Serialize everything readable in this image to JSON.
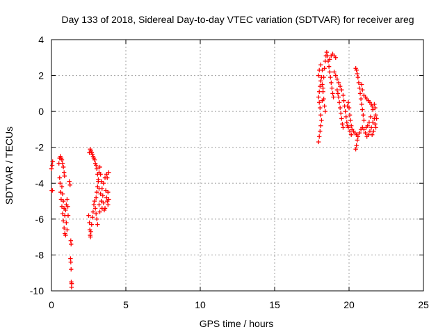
{
  "chart_data": {
    "type": "scatter",
    "title": "Day 133 of 2018, Sidereal Day-to-day VTEC variation (SDTVAR) for receiver areg",
    "xlabel": "GPS time / hours",
    "ylabel": "SDTVAR / TECUs",
    "xlim": [
      0,
      25
    ],
    "ylim": [
      -10,
      4
    ],
    "xticks": [
      "0",
      "5",
      "10",
      "15",
      "20",
      "25"
    ],
    "yticks": [
      "-10",
      "-8",
      "-6",
      "-4",
      "-2",
      "0",
      "2",
      "4"
    ],
    "grid": true,
    "marker": "plus",
    "color": "#ff0000",
    "series": [
      {
        "values": [
          [
            0.0,
            -3.2
          ],
          [
            0.05,
            -3.0
          ],
          [
            0.08,
            -2.8
          ],
          [
            0.02,
            -4.4
          ],
          [
            0.07,
            -4.4
          ],
          [
            0.5,
            -2.9
          ],
          [
            0.55,
            -2.6
          ],
          [
            0.6,
            -2.5
          ],
          [
            0.65,
            -2.6
          ],
          [
            0.7,
            -2.7
          ],
          [
            0.75,
            -2.9
          ],
          [
            0.8,
            -3.1
          ],
          [
            0.85,
            -3.4
          ],
          [
            0.88,
            -3.6
          ],
          [
            0.55,
            -3.7
          ],
          [
            0.58,
            -4.0
          ],
          [
            0.62,
            -4.5
          ],
          [
            0.65,
            -4.9
          ],
          [
            0.7,
            -5.3
          ],
          [
            0.75,
            -5.7
          ],
          [
            0.8,
            -6.1
          ],
          [
            0.85,
            -6.5
          ],
          [
            0.9,
            -6.8
          ],
          [
            0.95,
            -6.9
          ],
          [
            0.7,
            -4.2
          ],
          [
            0.75,
            -4.6
          ],
          [
            0.8,
            -5.0
          ],
          [
            0.85,
            -5.4
          ],
          [
            0.9,
            -5.8
          ],
          [
            0.95,
            -5.5
          ],
          [
            1.0,
            -5.2
          ],
          [
            1.05,
            -4.9
          ],
          [
            1.1,
            -5.3
          ],
          [
            1.12,
            -5.8
          ],
          [
            1.0,
            -6.2
          ],
          [
            1.05,
            -6.6
          ],
          [
            1.2,
            -3.9
          ],
          [
            1.25,
            -4.1
          ],
          [
            1.3,
            -7.2
          ],
          [
            1.32,
            -7.4
          ],
          [
            1.28,
            -8.2
          ],
          [
            1.3,
            -8.4
          ],
          [
            1.32,
            -8.8
          ],
          [
            1.33,
            -9.5
          ],
          [
            1.35,
            -9.8
          ],
          [
            1.36,
            -9.6
          ],
          [
            2.5,
            -5.8
          ],
          [
            2.55,
            -6.2
          ],
          [
            2.58,
            -6.6
          ],
          [
            2.6,
            -6.9
          ],
          [
            2.62,
            -7.0
          ],
          [
            2.65,
            -6.7
          ],
          [
            2.7,
            -6.3
          ],
          [
            2.75,
            -5.9
          ],
          [
            2.8,
            -5.6
          ],
          [
            2.55,
            -2.3
          ],
          [
            2.6,
            -2.1
          ],
          [
            2.65,
            -2.2
          ],
          [
            2.7,
            -2.3
          ],
          [
            2.75,
            -2.4
          ],
          [
            2.8,
            -2.5
          ],
          [
            2.85,
            -2.6
          ],
          [
            2.9,
            -2.7
          ],
          [
            2.95,
            -2.9
          ],
          [
            3.0,
            -3.0
          ],
          [
            3.05,
            -3.2
          ],
          [
            3.1,
            -3.5
          ],
          [
            3.15,
            -3.9
          ],
          [
            3.2,
            -4.3
          ],
          [
            2.85,
            -5.2
          ],
          [
            2.9,
            -5.0
          ],
          [
            2.95,
            -5.4
          ],
          [
            3.0,
            -5.7
          ],
          [
            3.05,
            -6.0
          ],
          [
            3.1,
            -6.3
          ],
          [
            3.0,
            -4.8
          ],
          [
            3.05,
            -4.5
          ],
          [
            3.1,
            -4.2
          ],
          [
            3.15,
            -3.8
          ],
          [
            3.2,
            -3.4
          ],
          [
            3.25,
            -3.1
          ],
          [
            3.3,
            -3.5
          ],
          [
            3.35,
            -3.9
          ],
          [
            3.4,
            -4.3
          ],
          [
            3.45,
            -4.7
          ],
          [
            3.5,
            -5.1
          ],
          [
            3.55,
            -5.5
          ],
          [
            3.3,
            -4.6
          ],
          [
            3.35,
            -5.0
          ],
          [
            3.4,
            -5.4
          ],
          [
            3.2,
            -5.2
          ],
          [
            3.25,
            -5.6
          ],
          [
            3.5,
            -4.0
          ],
          [
            3.6,
            -3.7
          ],
          [
            3.7,
            -3.5
          ],
          [
            3.75,
            -3.7
          ],
          [
            3.65,
            -4.4
          ],
          [
            3.7,
            -4.8
          ],
          [
            3.75,
            -5.0
          ],
          [
            3.8,
            -5.2
          ],
          [
            3.85,
            -4.9
          ],
          [
            3.8,
            -4.5
          ],
          [
            3.85,
            -3.4
          ],
          [
            3.6,
            -5.4
          ],
          [
            17.95,
            -1.7
          ],
          [
            18.0,
            -1.4
          ],
          [
            18.05,
            -1.1
          ],
          [
            18.1,
            -0.8
          ],
          [
            18.15,
            -0.5
          ],
          [
            18.1,
            -0.2
          ],
          [
            18.05,
            0.2
          ],
          [
            18.0,
            0.5
          ],
          [
            17.95,
            0.8
          ],
          [
            18.0,
            1.1
          ],
          [
            18.05,
            1.4
          ],
          [
            18.1,
            1.7
          ],
          [
            17.95,
            2.0
          ],
          [
            18.0,
            2.3
          ],
          [
            18.1,
            2.6
          ],
          [
            18.2,
            2.3
          ],
          [
            18.15,
            1.9
          ],
          [
            18.2,
            1.5
          ],
          [
            18.25,
            1.1
          ],
          [
            18.3,
            0.7
          ],
          [
            18.35,
            0.3
          ],
          [
            18.4,
            0.0
          ],
          [
            18.2,
            0.6
          ],
          [
            18.25,
            1.3
          ],
          [
            18.3,
            1.9
          ],
          [
            18.35,
            2.4
          ],
          [
            18.4,
            2.8
          ],
          [
            18.45,
            3.1
          ],
          [
            18.5,
            3.3
          ],
          [
            18.55,
            3.1
          ],
          [
            18.6,
            2.8
          ],
          [
            18.65,
            2.5
          ],
          [
            18.7,
            2.2
          ],
          [
            18.75,
            1.9
          ],
          [
            18.8,
            1.6
          ],
          [
            18.85,
            1.3
          ],
          [
            18.9,
            1.0
          ],
          [
            18.95,
            0.8
          ],
          [
            18.7,
            2.9
          ],
          [
            18.8,
            3.1
          ],
          [
            18.9,
            3.2
          ],
          [
            19.0,
            3.1
          ],
          [
            19.1,
            3.0
          ],
          [
            19.0,
            2.2
          ],
          [
            19.1,
            2.0
          ],
          [
            19.2,
            1.8
          ],
          [
            19.3,
            1.6
          ],
          [
            19.4,
            1.4
          ],
          [
            19.5,
            1.2
          ],
          [
            19.6,
            0.9
          ],
          [
            19.65,
            0.6
          ],
          [
            19.7,
            0.3
          ],
          [
            19.75,
            0.0
          ],
          [
            19.8,
            -0.3
          ],
          [
            19.85,
            -0.6
          ],
          [
            19.9,
            -0.8
          ],
          [
            19.3,
            0.8
          ],
          [
            19.35,
            0.5
          ],
          [
            19.4,
            0.2
          ],
          [
            19.45,
            -0.1
          ],
          [
            19.5,
            -0.4
          ],
          [
            19.55,
            -0.7
          ],
          [
            19.6,
            -0.9
          ],
          [
            19.2,
            1.2
          ],
          [
            19.25,
            1.0
          ],
          [
            19.9,
            0.3
          ],
          [
            19.95,
            0.5
          ],
          [
            20.0,
            0.2
          ],
          [
            20.05,
            -0.2
          ],
          [
            20.1,
            -0.5
          ],
          [
            20.15,
            -0.8
          ],
          [
            20.2,
            -1.0
          ],
          [
            20.3,
            -1.1
          ],
          [
            20.4,
            -1.2
          ],
          [
            20.5,
            -1.3
          ],
          [
            20.55,
            -1.6
          ],
          [
            20.5,
            -1.9
          ],
          [
            20.45,
            -2.1
          ],
          [
            20.6,
            -1.4
          ],
          [
            20.7,
            -1.2
          ],
          [
            20.8,
            -1.0
          ],
          [
            20.9,
            -0.9
          ],
          [
            21.0,
            -1.0
          ],
          [
            21.1,
            -1.2
          ],
          [
            21.2,
            -1.4
          ],
          [
            21.3,
            -1.3
          ],
          [
            21.4,
            -1.1
          ],
          [
            21.5,
            -0.9
          ],
          [
            21.6,
            -0.6
          ],
          [
            21.7,
            -0.4
          ],
          [
            21.75,
            -0.7
          ],
          [
            21.8,
            -0.9
          ],
          [
            21.65,
            -1.1
          ],
          [
            21.55,
            -1.3
          ],
          [
            20.45,
            2.4
          ],
          [
            20.5,
            2.3
          ],
          [
            20.55,
            2.1
          ],
          [
            20.6,
            1.9
          ],
          [
            20.65,
            1.6
          ],
          [
            20.7,
            1.3
          ],
          [
            20.75,
            1.0
          ],
          [
            20.8,
            0.7
          ],
          [
            20.85,
            0.4
          ],
          [
            20.9,
            0.1
          ],
          [
            20.95,
            -0.2
          ],
          [
            21.0,
            -0.5
          ],
          [
            20.85,
            1.5
          ],
          [
            20.9,
            1.2
          ],
          [
            21.0,
            0.9
          ],
          [
            21.1,
            0.8
          ],
          [
            21.2,
            0.7
          ],
          [
            21.3,
            0.6
          ],
          [
            21.4,
            0.5
          ],
          [
            21.5,
            0.4
          ],
          [
            21.55,
            0.3
          ],
          [
            21.6,
            0.1
          ],
          [
            21.7,
            0.4
          ],
          [
            21.75,
            0.2
          ],
          [
            21.8,
            -0.2
          ],
          [
            21.85,
            -0.4
          ],
          [
            21.45,
            -0.3
          ],
          [
            21.35,
            -0.6
          ],
          [
            21.25,
            -0.8
          ],
          [
            21.15,
            -0.9
          ],
          [
            19.95,
            -0.9
          ],
          [
            20.05,
            -1.1
          ],
          [
            20.15,
            -1.3
          ]
        ]
      }
    ]
  }
}
